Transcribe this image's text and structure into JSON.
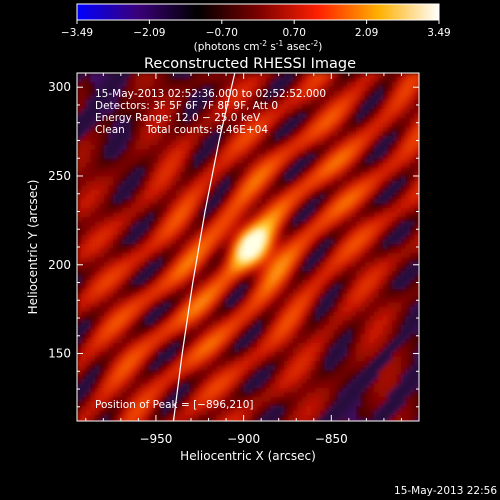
{
  "colorbar": {
    "ticks": [
      "-3.49",
      "-2.09",
      "-0.70",
      "0.70",
      "2.09",
      "3.49"
    ],
    "range": [
      -3.49,
      3.49
    ],
    "units_main": "(photons cm",
    "units_exp1": "-2",
    "units_s": " s",
    "units_exp2": "-1",
    "units_asec": " asec",
    "units_exp3": "-2",
    "units_close": ")",
    "colormap": [
      "#0000ff",
      "#3a007a",
      "#000000",
      "#7a0000",
      "#ff2000",
      "#ffb000",
      "#ffffff"
    ]
  },
  "chart_data": {
    "type": "heatmap",
    "title": "Reconstructed RHESSI Image",
    "xlabel": "Heliocentric X (arcsec)",
    "ylabel": "Heliocentric Y (arcsec)",
    "xlim": [
      -995,
      -800
    ],
    "ylim": [
      112,
      308
    ],
    "x_ticks": [
      -950,
      -900,
      -850
    ],
    "x_tick_labels": [
      "−950",
      "−900",
      "−850"
    ],
    "y_ticks": [
      150,
      200,
      250,
      300
    ],
    "y_tick_labels": [
      "150",
      "200",
      "250",
      "300"
    ],
    "peak": [
      -896,
      210
    ],
    "limb_curve": [
      [
        -940,
        112
      ],
      [
        -935,
        150
      ],
      [
        -929,
        190
      ],
      [
        -922,
        230
      ],
      [
        -914,
        270
      ],
      [
        -905,
        308
      ]
    ]
  },
  "info": {
    "time_range": "15‑May‑2013 02:52:36.000 to 02:52:52.000",
    "detectors": "Detectors: 3F 5F 6F 7F 8F 9F, Att 0",
    "energy": "Energy Range: 12.0 − 25.0 keV",
    "method": "Clean",
    "counts": "Total counts: 8.46E+04",
    "peak_label": "Position of Peak = [−896,210]"
  },
  "footer": {
    "timestamp": "15‑May‑2013 22:56"
  }
}
